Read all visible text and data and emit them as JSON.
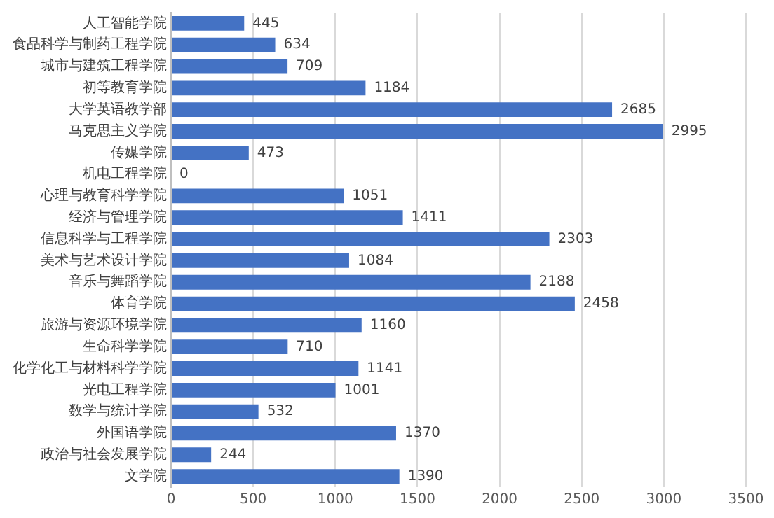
{
  "chart_data": {
    "type": "bar",
    "orientation": "horizontal",
    "categories": [
      "人工智能学院",
      "食品科学与制药工程学院",
      "城市与建筑工程学院",
      "初等教育学院",
      "大学英语教学部",
      "马克思主义学院",
      "传媒学院",
      "机电工程学院",
      "心理与教育科学学院",
      "经济与管理学院",
      "信息科学与工程学院",
      "美术与艺术设计学院",
      "音乐与舞蹈学院",
      "体育学院",
      "旅游与资源环境学院",
      "生命科学学院",
      "化学化工与材料科学学院",
      "光电工程学院",
      "数学与统计学院",
      "外国语学院",
      "政治与社会发展学院",
      "文学院"
    ],
    "values": [
      445,
      634,
      709,
      1184,
      2685,
      2995,
      473,
      0,
      1051,
      1411,
      2303,
      1084,
      2188,
      2458,
      1160,
      710,
      1141,
      1001,
      532,
      1370,
      244,
      1390
    ],
    "color": "#4472c4",
    "xlim": [
      0,
      3500
    ],
    "xticks": [
      0,
      500,
      1000,
      1500,
      2000,
      2500,
      3000,
      3500
    ],
    "grid": "x",
    "data_labels": true
  }
}
